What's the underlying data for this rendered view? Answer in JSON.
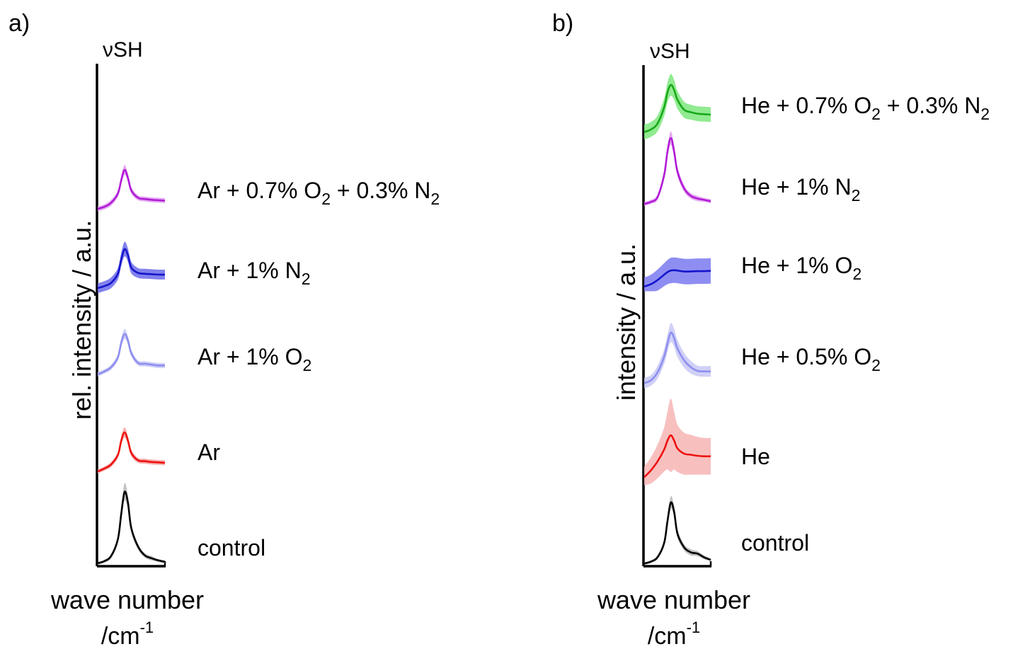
{
  "chart_data": [
    {
      "type": "line",
      "panel_label": "a)",
      "peak_label": "νSH",
      "ylabel": "rel. intensity / a.u.",
      "xlabel": "wave number",
      "xunit": {
        "base": "/cm",
        "sup": "-1"
      },
      "series": [
        {
          "name": "control",
          "label": [
            {
              "t": "control"
            }
          ],
          "color": "#000000",
          "band_color": "#b8b8b8",
          "x": [
            0,
            0.1,
            0.2,
            0.3,
            0.35,
            0.4,
            0.45,
            0.5,
            0.6,
            0.7,
            0.8,
            0.9,
            1.0
          ],
          "y": [
            0.02,
            0.05,
            0.12,
            0.35,
            0.7,
            1.0,
            0.85,
            0.5,
            0.25,
            0.13,
            0.09,
            0.06,
            0.04
          ],
          "band": [
            0.02,
            0.02,
            0.03,
            0.05,
            0.08,
            0.12,
            0.09,
            0.06,
            0.04,
            0.03,
            0.03,
            0.02,
            0.02
          ]
        },
        {
          "name": "Ar",
          "label": [
            {
              "t": "Ar"
            }
          ],
          "color": "#ee1111",
          "band_color": "#f5a0a0",
          "x": [
            0,
            0.1,
            0.2,
            0.3,
            0.35,
            0.4,
            0.45,
            0.5,
            0.6,
            0.7,
            0.8,
            0.9,
            1.0
          ],
          "y": [
            0.05,
            0.12,
            0.22,
            0.45,
            0.8,
            1.0,
            0.8,
            0.5,
            0.32,
            0.3,
            0.28,
            0.27,
            0.26
          ],
          "band": [
            0.05,
            0.05,
            0.06,
            0.07,
            0.1,
            0.12,
            0.1,
            0.08,
            0.06,
            0.06,
            0.06,
            0.06,
            0.06
          ]
        },
        {
          "name": "Ar + 1% O2",
          "label": [
            {
              "t": "Ar + 1% O"
            },
            {
              "t": "2",
              "sub": true
            }
          ],
          "color": "#8e8ef0",
          "band_color": "#c8c8f6",
          "x": [
            0,
            0.1,
            0.2,
            0.3,
            0.35,
            0.4,
            0.45,
            0.5,
            0.6,
            0.7,
            0.8,
            0.9,
            1.0
          ],
          "y": [
            0.05,
            0.12,
            0.22,
            0.45,
            0.8,
            1.0,
            0.85,
            0.55,
            0.32,
            0.3,
            0.28,
            0.26,
            0.26
          ],
          "band": [
            0.05,
            0.05,
            0.06,
            0.07,
            0.1,
            0.12,
            0.1,
            0.08,
            0.06,
            0.06,
            0.06,
            0.06,
            0.06
          ]
        },
        {
          "name": "Ar + 1% N2",
          "label": [
            {
              "t": "Ar + 1% N"
            },
            {
              "t": "2",
              "sub": true
            }
          ],
          "color": "#1515cc",
          "band_color": "#6b6bea",
          "x": [
            0,
            0.1,
            0.2,
            0.3,
            0.35,
            0.4,
            0.45,
            0.5,
            0.6,
            0.7,
            0.8,
            0.9,
            1.0
          ],
          "y": [
            0.05,
            0.1,
            0.18,
            0.4,
            0.75,
            1.0,
            0.85,
            0.55,
            0.42,
            0.4,
            0.39,
            0.38,
            0.38
          ],
          "band": [
            0.12,
            0.12,
            0.13,
            0.14,
            0.16,
            0.18,
            0.16,
            0.14,
            0.12,
            0.12,
            0.12,
            0.12,
            0.12
          ]
        },
        {
          "name": "Ar + 0.7% O2 + 0.3% N2",
          "label": [
            {
              "t": "Ar + 0.7% O"
            },
            {
              "t": "2",
              "sub": true
            },
            {
              "t": " + 0.3% N"
            },
            {
              "t": "2",
              "sub": true
            }
          ],
          "color": "#b11bd6",
          "band_color": "#e09cf0",
          "x": [
            0,
            0.1,
            0.2,
            0.3,
            0.35,
            0.4,
            0.45,
            0.5,
            0.6,
            0.7,
            0.8,
            0.9,
            1.0
          ],
          "y": [
            0.05,
            0.1,
            0.2,
            0.42,
            0.75,
            1.0,
            0.8,
            0.5,
            0.32,
            0.29,
            0.27,
            0.26,
            0.25
          ],
          "band": [
            0.06,
            0.06,
            0.07,
            0.08,
            0.1,
            0.12,
            0.1,
            0.08,
            0.06,
            0.06,
            0.06,
            0.06,
            0.06
          ]
        }
      ]
    },
    {
      "type": "line",
      "panel_label": "b)",
      "peak_label": "νSH",
      "ylabel": "intensity / a.u.",
      "xlabel": "wave number",
      "xunit": {
        "base": "/cm",
        "sup": "-1"
      },
      "series": [
        {
          "name": "control",
          "label": [
            {
              "t": "control"
            }
          ],
          "color": "#000000",
          "band_color": "#b8b8b8",
          "x": [
            0,
            0.1,
            0.2,
            0.3,
            0.35,
            0.4,
            0.45,
            0.5,
            0.6,
            0.7,
            0.8,
            0.9,
            1.0
          ],
          "y": [
            0.02,
            0.05,
            0.12,
            0.35,
            0.7,
            1.0,
            0.85,
            0.5,
            0.28,
            0.2,
            0.18,
            0.12,
            0.08
          ],
          "band": [
            0.02,
            0.02,
            0.03,
            0.05,
            0.08,
            0.1,
            0.09,
            0.07,
            0.05,
            0.05,
            0.04,
            0.03,
            0.02
          ]
        },
        {
          "name": "He",
          "label": [
            {
              "t": "He"
            }
          ],
          "color": "#ee1111",
          "band_color": "#f7b4b4",
          "x": [
            0,
            0.1,
            0.2,
            0.3,
            0.35,
            0.4,
            0.45,
            0.5,
            0.6,
            0.7,
            0.8,
            0.9,
            1.0
          ],
          "y": [
            0.05,
            0.18,
            0.35,
            0.58,
            0.75,
            0.85,
            0.75,
            0.6,
            0.5,
            0.48,
            0.46,
            0.45,
            0.45
          ],
          "band": [
            0.2,
            0.25,
            0.32,
            0.42,
            0.55,
            0.7,
            0.55,
            0.45,
            0.4,
            0.38,
            0.36,
            0.35,
            0.35
          ]
        },
        {
          "name": "He + 0.5% O2",
          "label": [
            {
              "t": "He + 0.5% O"
            },
            {
              "t": "2",
              "sub": true
            }
          ],
          "color": "#8e8ef0",
          "band_color": "#c8c8f6",
          "x": [
            0,
            0.1,
            0.2,
            0.3,
            0.35,
            0.4,
            0.45,
            0.5,
            0.6,
            0.7,
            0.8,
            0.9,
            1.0
          ],
          "y": [
            0.05,
            0.1,
            0.25,
            0.55,
            0.8,
            1.0,
            0.9,
            0.7,
            0.48,
            0.35,
            0.28,
            0.27,
            0.27
          ],
          "band": [
            0.1,
            0.1,
            0.12,
            0.14,
            0.16,
            0.18,
            0.17,
            0.16,
            0.14,
            0.12,
            0.1,
            0.1,
            0.1
          ]
        },
        {
          "name": "He + 1% O2",
          "label": [
            {
              "t": "He + 1% O"
            },
            {
              "t": "2",
              "sub": true
            }
          ],
          "color": "#1515cc",
          "band_color": "#7a7af0",
          "x": [
            0,
            0.1,
            0.2,
            0.3,
            0.35,
            0.4,
            0.45,
            0.5,
            0.6,
            0.7,
            0.8,
            0.9,
            1.0
          ],
          "y": [
            0.05,
            0.12,
            0.25,
            0.42,
            0.5,
            0.55,
            0.56,
            0.55,
            0.52,
            0.52,
            0.53,
            0.53,
            0.54
          ],
          "band": [
            0.28,
            0.3,
            0.33,
            0.36,
            0.38,
            0.4,
            0.4,
            0.4,
            0.4,
            0.4,
            0.4,
            0.4,
            0.4
          ]
        },
        {
          "name": "He + 1% N2",
          "label": [
            {
              "t": "He + 1% N"
            },
            {
              "t": "2",
              "sub": true
            }
          ],
          "color": "#b11bd6",
          "band_color": "#e09cf0",
          "x": [
            0,
            0.1,
            0.2,
            0.3,
            0.35,
            0.4,
            0.45,
            0.5,
            0.6,
            0.7,
            0.8,
            0.9,
            1.0
          ],
          "y": [
            0.02,
            0.05,
            0.12,
            0.45,
            0.8,
            1.0,
            0.8,
            0.5,
            0.25,
            0.14,
            0.1,
            0.08,
            0.06
          ],
          "band": [
            0.03,
            0.03,
            0.04,
            0.06,
            0.08,
            0.1,
            0.09,
            0.07,
            0.05,
            0.04,
            0.04,
            0.03,
            0.03
          ]
        },
        {
          "name": "He + 0.7% O2 + 0.3% N2",
          "label": [
            {
              "t": "He + 0.7% O"
            },
            {
              "t": "2",
              "sub": true
            },
            {
              "t": " + 0.3% N"
            },
            {
              "t": "2",
              "sub": true
            }
          ],
          "color": "#1aa81a",
          "band_color": "#7ee87e",
          "x": [
            0,
            0.1,
            0.2,
            0.3,
            0.35,
            0.4,
            0.45,
            0.5,
            0.6,
            0.7,
            0.8,
            0.9,
            1.0
          ],
          "y": [
            0.05,
            0.1,
            0.22,
            0.55,
            0.85,
            1.0,
            0.9,
            0.7,
            0.5,
            0.45,
            0.42,
            0.41,
            0.4
          ],
          "band": [
            0.15,
            0.15,
            0.16,
            0.18,
            0.2,
            0.22,
            0.2,
            0.18,
            0.16,
            0.15,
            0.15,
            0.15,
            0.15
          ]
        }
      ]
    }
  ]
}
